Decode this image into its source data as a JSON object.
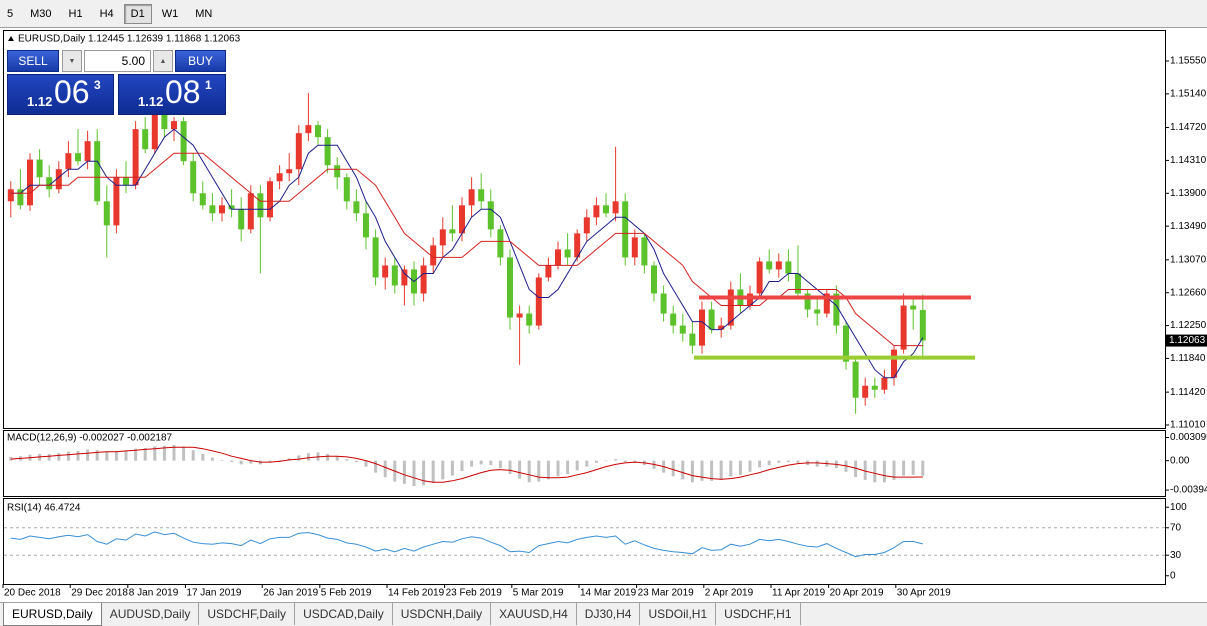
{
  "toolbar": {
    "timeframes": [
      "5",
      "M30",
      "H1",
      "H4",
      "D1",
      "W1",
      "MN"
    ],
    "active": 4
  },
  "trade_panel": {
    "sell": "SELL",
    "buy": "BUY",
    "lots": "5.00",
    "bid": {
      "big": "1.12",
      "pips": "06",
      "frac": "3"
    },
    "ask": {
      "big": "1.12",
      "pips": "08",
      "frac": "1"
    }
  },
  "tabs": [
    "EURUSD,Daily",
    "AUDUSD,Daily",
    "USDCHF,Daily",
    "USDCAD,Daily",
    "USDCNH,Daily",
    "XAUUSD,H4",
    "DJ30,H4",
    "USDOil,H1",
    "USDCHF,H1"
  ],
  "active_tab": 0,
  "chart_data": [
    {
      "type": "candlestick",
      "title": "EURUSD,Daily",
      "subtitle": "1.12445 1.12639 1.11868 1.12063",
      "up_color": "#e8382d",
      "down_color": "#5cc22c",
      "categories": [
        null,
        null,
        "20 Dec 2018",
        null,
        null,
        null,
        null,
        null,
        null,
        "29 Dec 2018",
        null,
        null,
        null,
        null,
        null,
        "8 Jan 2019",
        null,
        null,
        null,
        null,
        null,
        "17 Jan 2019",
        null,
        null,
        null,
        null,
        null,
        null,
        null,
        "26 Jan 2019",
        null,
        null,
        null,
        null,
        null,
        "5 Feb 2019",
        null,
        null,
        null,
        null,
        null,
        null,
        "14 Feb 2019",
        null,
        null,
        null,
        null,
        null,
        "23 Feb 2019",
        null,
        null,
        null,
        null,
        null,
        null,
        "5 Mar 2019",
        null,
        null,
        null,
        null,
        null,
        null,
        "14 Mar 2019",
        null,
        null,
        null,
        null,
        null,
        "23 Mar 2019",
        null,
        null,
        null,
        null,
        null,
        null,
        "2 Apr 2019",
        null,
        null,
        null,
        null,
        null,
        null,
        "11 Apr 2019",
        null,
        null,
        null,
        null,
        null,
        "20 Apr 2019",
        null,
        null,
        null,
        null,
        null,
        null,
        "30 Apr 2019"
      ],
      "open": [
        1.138,
        1.1395,
        1.1375,
        1.1432,
        1.141,
        1.1395,
        1.142,
        1.144,
        1.143,
        1.1455,
        1.138,
        1.135,
        1.141,
        1.14,
        1.147,
        1.1445,
        1.149,
        1.147,
        1.148,
        1.143,
        1.139,
        1.1375,
        1.1365,
        1.1375,
        1.137,
        1.1345,
        1.139,
        1.136,
        1.1405,
        1.1415,
        1.142,
        1.1465,
        1.1475,
        1.146,
        1.1425,
        1.141,
        1.138,
        1.1365,
        1.1335,
        1.1285,
        1.13,
        1.1275,
        1.1295,
        1.1265,
        1.13,
        1.1325,
        1.1345,
        1.134,
        1.1375,
        1.1395,
        1.138,
        1.1345,
        1.131,
        1.1235,
        1.124,
        1.1225,
        1.1285,
        1.13,
        1.132,
        1.131,
        1.134,
        1.136,
        1.1375,
        1.1365,
        1.138,
        1.131,
        1.1335,
        1.13,
        1.1265,
        1.124,
        1.1225,
        1.1215,
        1.12,
        1.1245,
        1.122,
        1.1225,
        1.127,
        1.125,
        1.1265,
        1.1305,
        1.1295,
        1.1305,
        1.129,
        1.1265,
        1.1245,
        1.124,
        1.1265,
        1.1225,
        1.118,
        1.1135,
        1.115,
        1.1145,
        1.116,
        1.1195,
        1.125,
        1.12445
      ],
      "high": [
        1.1405,
        1.142,
        1.144,
        1.1445,
        1.1425,
        1.143,
        1.1455,
        1.147,
        1.1468,
        1.147,
        1.14,
        1.142,
        1.143,
        1.148,
        1.1485,
        1.15,
        1.1495,
        1.1485,
        1.1485,
        1.144,
        1.1405,
        1.139,
        1.1385,
        1.1395,
        1.1385,
        1.14,
        1.14,
        1.141,
        1.1425,
        1.144,
        1.1475,
        1.1515,
        1.148,
        1.147,
        1.1435,
        1.1415,
        1.1395,
        1.138,
        1.1345,
        1.131,
        1.131,
        1.13,
        1.1305,
        1.131,
        1.1335,
        1.136,
        1.1375,
        1.1385,
        1.141,
        1.1415,
        1.1395,
        1.135,
        1.132,
        1.125,
        1.125,
        1.129,
        1.131,
        1.133,
        1.134,
        1.1345,
        1.137,
        1.1385,
        1.139,
        1.1448,
        1.139,
        1.1345,
        1.134,
        1.1305,
        1.1275,
        1.125,
        1.124,
        1.123,
        1.1255,
        1.1255,
        1.1235,
        1.128,
        1.129,
        1.1275,
        1.131,
        1.132,
        1.1315,
        1.132,
        1.1325,
        1.127,
        1.126,
        1.127,
        1.1275,
        1.123,
        1.1185,
        1.116,
        1.116,
        1.117,
        1.12,
        1.1265,
        1.126,
        1.12639
      ],
      "low": [
        1.136,
        1.137,
        1.1368,
        1.14,
        1.1385,
        1.139,
        1.141,
        1.1425,
        1.142,
        1.1375,
        1.131,
        1.134,
        1.139,
        1.1395,
        1.144,
        1.144,
        1.146,
        1.1455,
        1.1425,
        1.138,
        1.137,
        1.1355,
        1.1355,
        1.136,
        1.133,
        1.134,
        1.129,
        1.1355,
        1.1395,
        1.1405,
        1.14,
        1.1455,
        1.145,
        1.1415,
        1.1395,
        1.137,
        1.1355,
        1.132,
        1.1275,
        1.127,
        1.1265,
        1.125,
        1.125,
        1.1255,
        1.129,
        1.131,
        1.133,
        1.133,
        1.136,
        1.137,
        1.1335,
        1.13,
        1.122,
        1.1176,
        1.1215,
        1.122,
        1.128,
        1.1295,
        1.13,
        1.1305,
        1.133,
        1.135,
        1.136,
        1.1355,
        1.13,
        1.13,
        1.129,
        1.1255,
        1.123,
        1.1215,
        1.1205,
        1.119,
        1.119,
        1.1215,
        1.121,
        1.122,
        1.124,
        1.1245,
        1.126,
        1.129,
        1.1285,
        1.128,
        1.126,
        1.1235,
        1.1225,
        1.1235,
        1.1215,
        1.117,
        1.1115,
        1.1125,
        1.1135,
        1.114,
        1.115,
        1.119,
        1.122,
        1.11868
      ],
      "close": [
        1.1395,
        1.1375,
        1.1432,
        1.141,
        1.1395,
        1.142,
        1.144,
        1.143,
        1.1455,
        1.138,
        1.135,
        1.141,
        1.14,
        1.147,
        1.1445,
        1.149,
        1.147,
        1.148,
        1.143,
        1.139,
        1.1375,
        1.1365,
        1.1375,
        1.137,
        1.1345,
        1.139,
        1.136,
        1.1405,
        1.1415,
        1.142,
        1.1465,
        1.1475,
        1.146,
        1.1425,
        1.141,
        1.138,
        1.1365,
        1.1335,
        1.1285,
        1.13,
        1.1275,
        1.1295,
        1.1265,
        1.13,
        1.1325,
        1.1345,
        1.134,
        1.1375,
        1.1395,
        1.138,
        1.1345,
        1.131,
        1.1235,
        1.124,
        1.1225,
        1.1285,
        1.13,
        1.132,
        1.131,
        1.134,
        1.136,
        1.1375,
        1.1365,
        1.138,
        1.131,
        1.1335,
        1.13,
        1.1265,
        1.124,
        1.1225,
        1.1215,
        1.12,
        1.1245,
        1.122,
        1.1225,
        1.127,
        1.125,
        1.1265,
        1.1305,
        1.1295,
        1.1305,
        1.129,
        1.1265,
        1.1245,
        1.124,
        1.1265,
        1.1225,
        1.118,
        1.1135,
        1.115,
        1.1145,
        1.116,
        1.1195,
        1.125,
        1.1245,
        1.12063
      ],
      "series": [
        {
          "type": "line",
          "color": "#1c1c8c",
          "values": [
            1.139,
            1.139,
            1.14,
            1.14,
            1.14,
            1.141,
            1.142,
            1.142,
            1.143,
            1.143,
            1.141,
            1.14,
            1.14,
            1.14,
            1.142,
            1.144,
            1.146,
            1.147,
            1.146,
            1.145,
            1.143,
            1.141,
            1.139,
            1.137,
            1.137,
            1.137,
            1.137,
            1.137,
            1.138,
            1.14,
            1.141,
            1.144,
            1.145,
            1.145,
            1.145,
            1.143,
            1.141,
            1.138,
            1.136,
            1.133,
            1.131,
            1.129,
            1.128,
            1.129,
            1.129,
            1.131,
            1.132,
            1.134,
            1.136,
            1.137,
            1.137,
            1.136,
            1.133,
            1.13,
            1.127,
            1.126,
            1.126,
            1.127,
            1.129,
            1.131,
            1.133,
            1.134,
            1.135,
            1.136,
            1.136,
            1.135,
            1.134,
            1.132,
            1.129,
            1.127,
            1.125,
            1.123,
            1.123,
            1.122,
            1.122,
            1.123,
            1.124,
            1.125,
            1.126,
            1.128,
            1.128,
            1.129,
            1.129,
            1.128,
            1.127,
            1.126,
            1.125,
            1.123,
            1.121,
            1.119,
            1.117,
            1.116,
            1.116,
            1.118,
            1.119,
            1.121
          ]
        },
        {
          "type": "line",
          "color": "#d42020",
          "values": [
            1.139,
            1.139,
            1.139,
            1.14,
            1.14,
            1.14,
            1.14,
            1.141,
            1.141,
            1.141,
            1.141,
            1.141,
            1.141,
            1.141,
            1.141,
            1.142,
            1.143,
            1.144,
            1.144,
            1.144,
            1.144,
            1.143,
            1.142,
            1.141,
            1.14,
            1.139,
            1.138,
            1.138,
            1.138,
            1.138,
            1.139,
            1.14,
            1.141,
            1.142,
            1.142,
            1.142,
            1.142,
            1.141,
            1.14,
            1.138,
            1.136,
            1.134,
            1.133,
            1.132,
            1.131,
            1.131,
            1.131,
            1.131,
            1.132,
            1.133,
            1.133,
            1.133,
            1.133,
            1.132,
            1.131,
            1.13,
            1.13,
            1.13,
            1.13,
            1.13,
            1.131,
            1.132,
            1.133,
            1.134,
            1.134,
            1.134,
            1.134,
            1.133,
            1.132,
            1.131,
            1.13,
            1.128,
            1.127,
            1.126,
            1.125,
            1.125,
            1.125,
            1.125,
            1.125,
            1.126,
            1.126,
            1.127,
            1.127,
            1.127,
            1.127,
            1.127,
            1.127,
            1.126,
            1.124,
            1.123,
            1.122,
            1.121,
            1.12,
            1.12,
            1.12,
            1.12
          ]
        }
      ],
      "hlines": [
        {
          "value": 1.126,
          "color": "#ee4444"
        },
        {
          "value": 1.1185,
          "color": "#9acd32"
        }
      ],
      "last_price": 1.12063,
      "ylim": [
        1.10985,
        1.15924
      ],
      "yticks": [
        {
          "value": 1.1555,
          "label": "1.15550"
        },
        {
          "value": 1.1514,
          "label": "1.15140"
        },
        {
          "value": 1.1472,
          "label": "1.14720"
        },
        {
          "value": 1.1431,
          "label": "1.14310"
        },
        {
          "value": 1.139,
          "label": "1.13900"
        },
        {
          "value": 1.1349,
          "label": "1.13490"
        },
        {
          "value": 1.1307,
          "label": "1.13070"
        },
        {
          "value": 1.1266,
          "label": "1.12660"
        },
        {
          "value": 1.1225,
          "label": "1.12250"
        },
        {
          "value": 1.1184,
          "label": "1.11840"
        },
        {
          "value": 1.1142,
          "label": "1.11420"
        },
        {
          "value": 1.1101,
          "label": "1.11010"
        }
      ],
      "grid": false
    },
    {
      "type": "bar",
      "title": "MACD(12,26,9) -0.002027 -0.002187",
      "series": [
        {
          "type": "bar",
          "color": "#c0c0c0",
          "values": [
            0.0005,
            0.0006,
            0.0008,
            0.0009,
            0.0009,
            0.001,
            0.0012,
            0.0013,
            0.0015,
            0.0014,
            0.0012,
            0.0013,
            0.0013,
            0.0016,
            0.0017,
            0.0019,
            0.002,
            0.0021,
            0.0019,
            0.0014,
            0.0009,
            0.0004,
            0.0001,
            -0.0002,
            -0.0005,
            -0.0004,
            -0.0005,
            -0.0002,
            0.0001,
            0.0003,
            0.0007,
            0.001,
            0.0011,
            0.0009,
            0.0006,
            0.0002,
            -0.0002,
            -0.0008,
            -0.0016,
            -0.0022,
            -0.0028,
            -0.0031,
            -0.0034,
            -0.0033,
            -0.003,
            -0.0025,
            -0.002,
            -0.0014,
            -0.0008,
            -0.0005,
            -0.0006,
            -0.001,
            -0.0018,
            -0.0024,
            -0.0029,
            -0.0028,
            -0.0025,
            -0.0021,
            -0.0018,
            -0.0013,
            -0.0008,
            -0.0003,
            0.0,
            0.0002,
            -0.0002,
            -0.0003,
            -0.0006,
            -0.0011,
            -0.0016,
            -0.0021,
            -0.0025,
            -0.0029,
            -0.0027,
            -0.0027,
            -0.0026,
            -0.0021,
            -0.0019,
            -0.0015,
            -0.0009,
            -0.0006,
            -0.0003,
            -0.0002,
            -0.0003,
            -0.0006,
            -0.0008,
            -0.0008,
            -0.001,
            -0.0015,
            -0.0022,
            -0.0026,
            -0.0029,
            -0.0029,
            -0.0026,
            -0.002,
            -0.0019,
            -0.002027
          ]
        },
        {
          "type": "line",
          "color": "#cc0000",
          "values": [
            0.0002,
            0.0003,
            0.0004,
            0.0005,
            0.0006,
            0.0007,
            0.0008,
            0.0009,
            0.001,
            0.0011,
            0.0012,
            0.0012,
            0.0013,
            0.0014,
            0.0015,
            0.0016,
            0.0017,
            0.0018,
            0.0018,
            0.0018,
            0.0016,
            0.0013,
            0.001,
            0.0006,
            0.0003,
            0.0,
            -0.0002,
            -0.0002,
            -0.0001,
            0.0001,
            0.0002,
            0.0004,
            0.0005,
            0.0006,
            0.0006,
            0.0005,
            0.0003,
            0.0,
            -0.0004,
            -0.0009,
            -0.0014,
            -0.0019,
            -0.0023,
            -0.0027,
            -0.0029,
            -0.0029,
            -0.0027,
            -0.0024,
            -0.002,
            -0.0016,
            -0.0013,
            -0.0012,
            -0.0013,
            -0.0016,
            -0.0019,
            -0.0022,
            -0.0023,
            -0.0023,
            -0.0022,
            -0.0019,
            -0.0016,
            -0.0012,
            -0.0008,
            -0.0005,
            -0.0003,
            -0.0002,
            -0.0003,
            -0.0005,
            -0.0008,
            -0.0012,
            -0.0016,
            -0.002,
            -0.0022,
            -0.0024,
            -0.0025,
            -0.0024,
            -0.0022,
            -0.0019,
            -0.0016,
            -0.0012,
            -0.0009,
            -0.0006,
            -0.0004,
            -0.0003,
            -0.0003,
            -0.0004,
            -0.0005,
            -0.0007,
            -0.001,
            -0.0014,
            -0.0017,
            -0.002,
            -0.0022,
            -0.0022,
            -0.0022,
            -0.002187
          ]
        }
      ],
      "ylim": [
        -0.0046,
        0.0037
      ],
      "yticks": [
        0.003095,
        {
          "value": 0,
          "label": "0.00"
        },
        -0.00394
      ],
      "grid": false
    },
    {
      "type": "line",
      "title": "RSI(14) 46.4724",
      "series": [
        {
          "type": "line",
          "color": "#3a8fd6",
          "values": [
            55,
            53,
            58,
            56,
            54,
            57,
            59,
            57,
            60,
            50,
            46,
            54,
            52,
            61,
            58,
            64,
            60,
            62,
            55,
            49,
            47,
            46,
            48,
            47,
            44,
            52,
            47,
            54,
            56,
            56,
            62,
            63,
            60,
            55,
            53,
            48,
            46,
            42,
            36,
            39,
            35,
            40,
            36,
            42,
            46,
            50,
            49,
            54,
            57,
            55,
            49,
            44,
            35,
            36,
            34,
            44,
            47,
            50,
            48,
            53,
            56,
            58,
            56,
            58,
            46,
            51,
            45,
            40,
            37,
            35,
            34,
            32,
            41,
            37,
            38,
            46,
            43,
            46,
            53,
            51,
            53,
            50,
            46,
            43,
            42,
            47,
            40,
            34,
            28,
            31,
            31,
            34,
            41,
            50,
            50,
            46.4724
          ]
        }
      ],
      "ylim": [
        -12,
        112
      ],
      "yticks": [
        100,
        70,
        30,
        0
      ],
      "grid": "dashed"
    }
  ]
}
